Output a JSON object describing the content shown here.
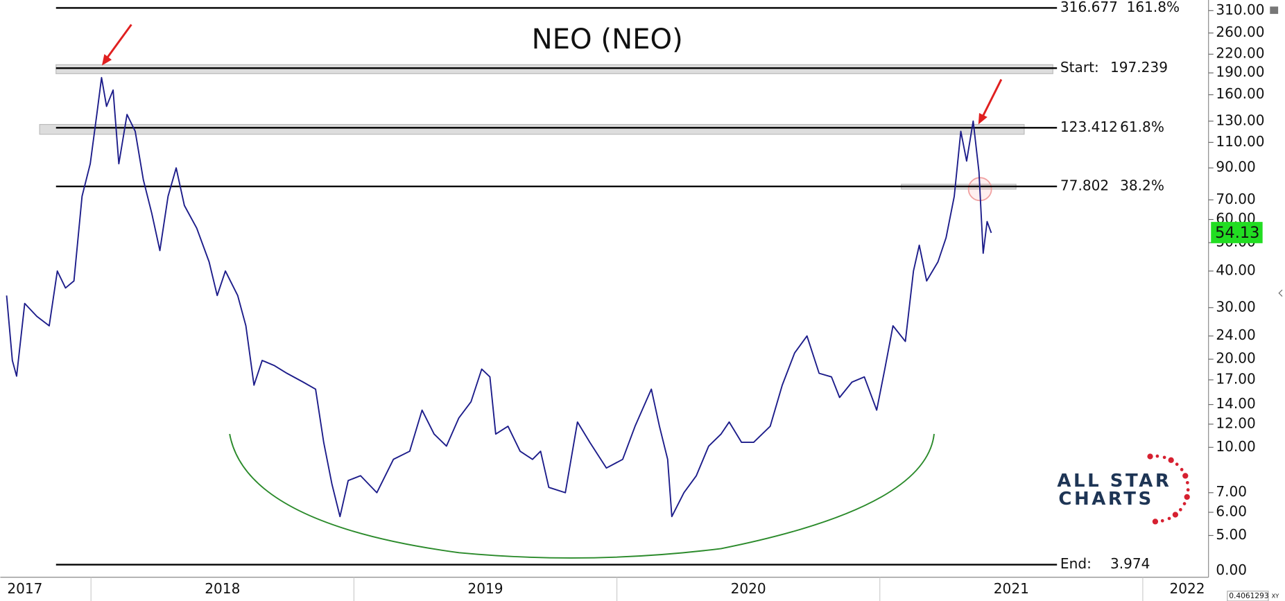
{
  "chart_data": {
    "type": "line",
    "title": "NEO (NEO)",
    "x": [
      2017.679,
      2017.701,
      2017.717,
      2017.748,
      2017.794,
      2017.841,
      2017.872,
      2017.903,
      2017.935,
      2017.966,
      2017.997,
      2018.022,
      2018.04,
      2018.059,
      2018.084,
      2018.106,
      2018.137,
      2018.168,
      2018.199,
      2018.231,
      2018.262,
      2018.293,
      2018.324,
      2018.355,
      2018.402,
      2018.449,
      2018.48,
      2018.511,
      2018.558,
      2018.589,
      2018.62,
      2018.651,
      2018.698,
      2018.745,
      2018.807,
      2018.854,
      2018.885,
      2018.916,
      2018.947,
      2018.978,
      2019.025,
      2019.087,
      2019.15,
      2019.212,
      2019.259,
      2019.305,
      2019.352,
      2019.399,
      2019.445,
      2019.486,
      2019.517,
      2019.539,
      2019.586,
      2019.632,
      2019.679,
      2019.71,
      2019.741,
      2019.804,
      2019.85,
      2019.897,
      2019.96,
      2020.022,
      2020.069,
      2020.131,
      2020.162,
      2020.193,
      2020.209,
      2020.255,
      2020.302,
      2020.349,
      2020.396,
      2020.427,
      2020.474,
      2020.52,
      2020.583,
      2020.629,
      2020.676,
      2020.723,
      2020.769,
      2020.816,
      2020.847,
      2020.894,
      2020.941,
      2020.988,
      2021.019,
      2021.05,
      2021.097,
      2021.128,
      2021.15,
      2021.178,
      2021.221,
      2021.252,
      2021.283,
      2021.308,
      2021.33,
      2021.355,
      2021.377,
      2021.393,
      2021.408,
      2021.424
    ],
    "series": [
      {
        "name": "NEO",
        "color": "#1c1c8a",
        "values": [
          33,
          19.8,
          17.5,
          31,
          28,
          26,
          40,
          35,
          37,
          72,
          93,
          137,
          183,
          146,
          166,
          93,
          137,
          120,
          82,
          63,
          47,
          72,
          90,
          67,
          56,
          43,
          33,
          40,
          33,
          26,
          16.3,
          19.8,
          19,
          17.9,
          16.7,
          15.8,
          10.4,
          7.5,
          5.8,
          7.7,
          8.0,
          7.0,
          9.1,
          9.7,
          13.4,
          11.1,
          10.1,
          12.6,
          14.3,
          18.5,
          17.4,
          11.1,
          11.8,
          9.7,
          9.1,
          9.7,
          7.3,
          7.0,
          12.2,
          10.4,
          8.5,
          9.1,
          11.8,
          15.8,
          11.8,
          9.1,
          5.8,
          7.0,
          8.0,
          10.1,
          11.1,
          12.2,
          10.4,
          10.4,
          11.8,
          16.3,
          21,
          24,
          17.9,
          17.4,
          14.8,
          16.7,
          17.4,
          13.4,
          18.5,
          26,
          23,
          40,
          49,
          37,
          43,
          52,
          72,
          120,
          95,
          130,
          87,
          46,
          59,
          54
        ]
      }
    ],
    "xlim": [
      2017.68,
      2022.25
    ],
    "xticks": [
      2017,
      2018,
      2019,
      2020,
      2021,
      2022
    ],
    "ylim": [
      3.6,
      337
    ],
    "log_scale": true,
    "yticks": [
      {
        "value": 310,
        "label": "310.00"
      },
      {
        "value": 260,
        "label": "260.00"
      },
      {
        "value": 220,
        "label": "220.00"
      },
      {
        "value": 190,
        "label": "190.00"
      },
      {
        "value": 160,
        "label": "160.00"
      },
      {
        "value": 130,
        "label": "130.00"
      },
      {
        "value": 110,
        "label": "110.00"
      },
      {
        "value": 90,
        "label": "90.00"
      },
      {
        "value": 70,
        "label": "70.00"
      },
      {
        "value": 60,
        "label": "60.00"
      },
      {
        "value": 50,
        "label": "50.00"
      },
      {
        "value": 40,
        "label": "40.00"
      },
      {
        "value": 30,
        "label": "30.00"
      },
      {
        "value": 24,
        "label": "24.00"
      },
      {
        "value": 20,
        "label": "20.00"
      },
      {
        "value": 17,
        "label": "17.00"
      },
      {
        "value": 14,
        "label": "14.00"
      },
      {
        "value": 12,
        "label": "12.00"
      },
      {
        "value": 10,
        "label": "10.00"
      },
      {
        "value": 7,
        "label": "7.00"
      },
      {
        "value": 6,
        "label": "6.00"
      },
      {
        "value": 5,
        "label": "5.00"
      }
    ],
    "y_axis_floor_label": "0.00",
    "last_price": 54.13,
    "last_price_color": "#22dd22",
    "levels": [
      {
        "value": 316.677,
        "ratio": "161.8%"
      },
      {
        "prefix": "Start:",
        "value": 197.239
      },
      {
        "value": 123.412,
        "ratio": "61.8%"
      },
      {
        "value": 77.802,
        "ratio": "38.2%"
      },
      {
        "prefix": "End:",
        "value": 3.974
      }
    ],
    "logo": [
      "ALL STAR",
      "CHARTS"
    ],
    "corner_readout": "0.4061293",
    "corner_mode": "XY"
  }
}
